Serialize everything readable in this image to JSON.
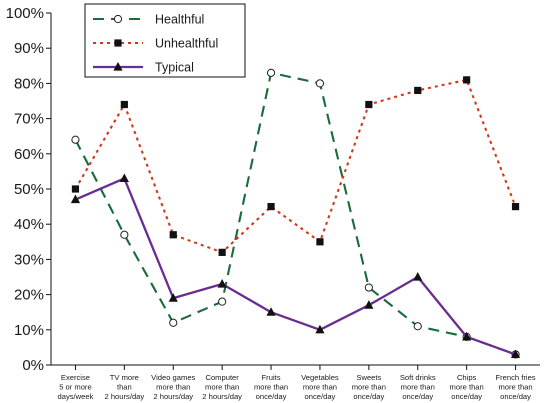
{
  "chart_data": {
    "type": "line",
    "title": "",
    "xlabel": "",
    "ylabel": "",
    "ylim": [
      0,
      100
    ],
    "yticks": [
      "0%",
      "10%",
      "20%",
      "30%",
      "40%",
      "50%",
      "60%",
      "70%",
      "80%",
      "90%",
      "100%"
    ],
    "grid": false,
    "legend_position": "top-center",
    "categories": [
      [
        "Exercise",
        "5 or more",
        "days/week"
      ],
      [
        "TV more",
        "than",
        "2 hours/day"
      ],
      [
        "Video games",
        "more than",
        "2 hours/day"
      ],
      [
        "Computer",
        "more than",
        "2 hours/day"
      ],
      [
        "Fruits",
        "more than",
        "once/day"
      ],
      [
        "Vegetables",
        "more than",
        "once/day"
      ],
      [
        "Sweets",
        "more than",
        "once/day"
      ],
      [
        "Soft drinks",
        "more than",
        "once/day"
      ],
      [
        "Chips",
        "more than",
        "once/day"
      ],
      [
        "French fries",
        "more than",
        "once/day"
      ]
    ],
    "series": [
      {
        "name": "Healthful",
        "values": [
          64,
          37,
          12,
          18,
          83,
          80,
          22,
          11,
          8,
          3
        ],
        "color": "#1a6b3a",
        "line_style": "dashed",
        "marker": "open-circle"
      },
      {
        "name": "Unhealthful",
        "values": [
          50,
          74,
          37,
          32,
          45,
          35,
          74,
          78,
          81,
          45
        ],
        "color": "#d0381e",
        "line_style": "dotted",
        "marker": "filled-square"
      },
      {
        "name": "Typical",
        "values": [
          47,
          53,
          19,
          23,
          15,
          10,
          17,
          25,
          8,
          3
        ],
        "color": "#6a2c91",
        "line_style": "solid",
        "marker": "filled-triangle"
      }
    ]
  }
}
